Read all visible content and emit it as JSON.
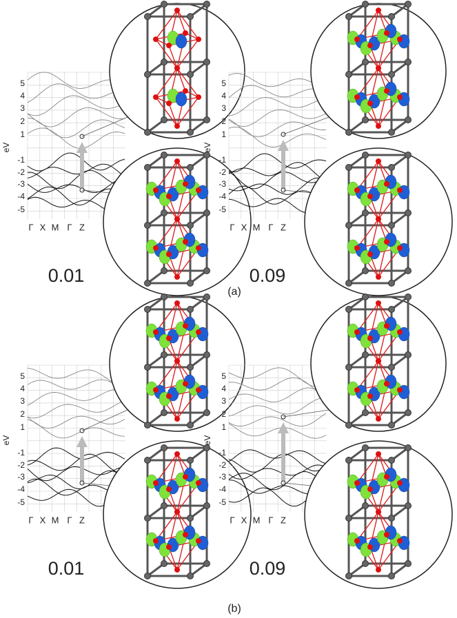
{
  "panels": [
    {
      "label": "0.01"
    },
    {
      "label": "0.09"
    },
    {
      "label": "0.01"
    },
    {
      "label": "0.09"
    }
  ],
  "captions": [
    "(a)",
    "(b)"
  ],
  "band_axis": {
    "ylabel": "eV",
    "yticks": [
      5,
      4,
      3,
      2,
      1,
      -1,
      -2,
      -3,
      -4,
      -5
    ],
    "kpoints": [
      "Γ",
      "X",
      "M",
      "Γ",
      "Z"
    ]
  }
}
